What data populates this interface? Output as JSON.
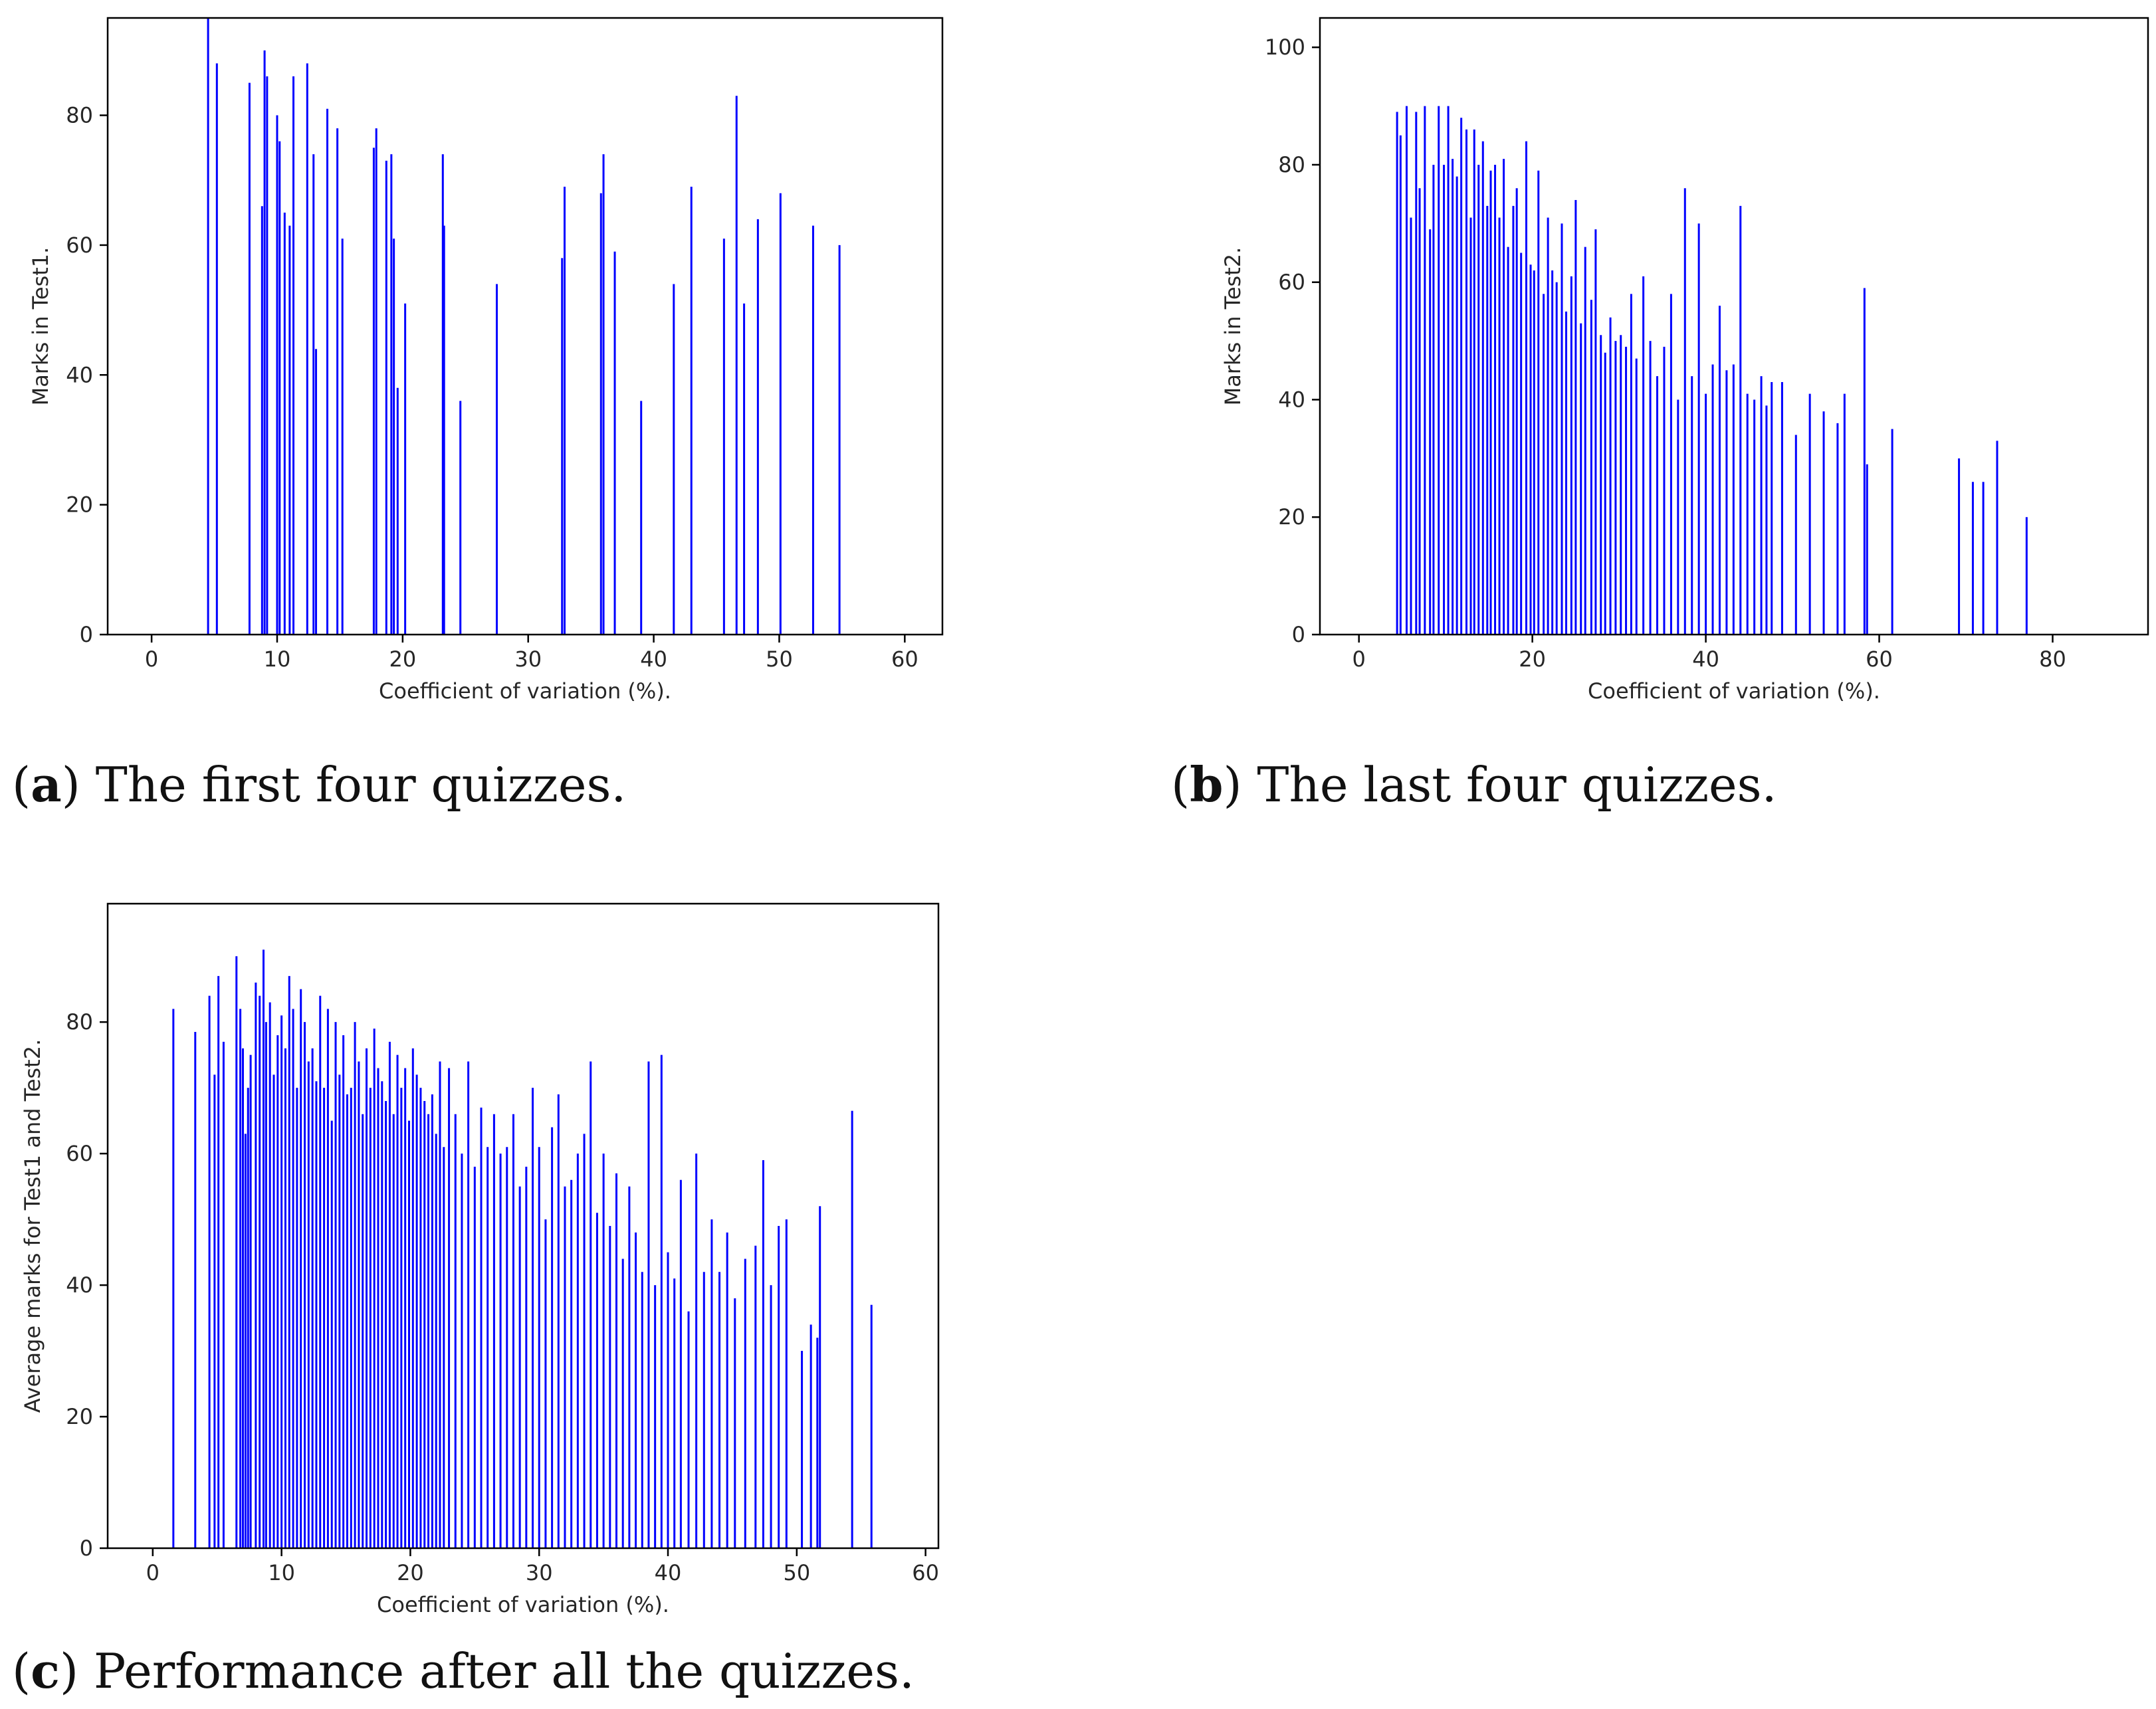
{
  "charts": {
    "a": {
      "chart_data": {
        "type": "bar",
        "title": "",
        "xlabel": "Coefficient of variation (%).",
        "ylabel": "Marks in Test1.",
        "xlim": [
          -3.5,
          63
        ],
        "ylim": [
          0,
          95
        ],
        "xticks": [
          0,
          10,
          20,
          30,
          40,
          50,
          60
        ],
        "yticks": [
          0,
          20,
          40,
          60,
          80
        ],
        "bar_color": "#0000ff",
        "x": [
          4.5,
          5.2,
          7.8,
          8.8,
          9.0,
          9.2,
          10.0,
          10.2,
          10.6,
          11.0,
          11.3,
          12.4,
          12.9,
          13.1,
          14.0,
          14.8,
          15.2,
          17.7,
          17.9,
          18.7,
          19.1,
          19.3,
          19.6,
          20.2,
          23.2,
          23.3,
          24.6,
          27.5,
          32.7,
          32.9,
          35.8,
          36.0,
          36.9,
          39.0,
          41.6,
          43.0,
          45.6,
          46.6,
          47.2,
          48.3,
          50.1,
          52.7,
          54.8
        ],
        "values": [
          95,
          88,
          85,
          66,
          90,
          86,
          80,
          76,
          65,
          63,
          86,
          88,
          74,
          44,
          81,
          78,
          61,
          75,
          78,
          73,
          74,
          61,
          38,
          51,
          74,
          63,
          36,
          54,
          58,
          69,
          68,
          74,
          59,
          36,
          54,
          69,
          61,
          83,
          51,
          64,
          68,
          63,
          60
        ]
      },
      "caption": {
        "label": "a",
        "text": " The first four quizzes."
      }
    },
    "b": {
      "chart_data": {
        "type": "bar",
        "title": "",
        "xlabel": "Coefficient of variation (%).",
        "ylabel": "Marks in Test2.",
        "xlim": [
          -4.5,
          91
        ],
        "ylim": [
          0,
          105
        ],
        "xticks": [
          0,
          20,
          40,
          60,
          80
        ],
        "yticks": [
          0,
          20,
          40,
          60,
          80,
          100
        ],
        "bar_color": "#0000ff",
        "x": [
          4.4,
          4.8,
          5.5,
          6.0,
          6.6,
          7.0,
          7.6,
          8.2,
          8.6,
          9.2,
          9.8,
          10.3,
          10.8,
          11.3,
          11.8,
          12.4,
          12.9,
          13.3,
          13.8,
          14.3,
          14.8,
          15.2,
          15.7,
          16.2,
          16.7,
          17.2,
          17.8,
          18.2,
          18.7,
          19.3,
          19.8,
          20.2,
          20.7,
          21.3,
          21.8,
          22.3,
          22.8,
          23.4,
          23.9,
          24.5,
          25.0,
          25.6,
          26.1,
          26.8,
          27.3,
          27.9,
          28.4,
          29.0,
          29.6,
          30.2,
          30.8,
          31.4,
          32.0,
          32.8,
          33.6,
          34.4,
          35.2,
          36.0,
          36.8,
          37.6,
          38.4,
          39.2,
          40.0,
          40.8,
          41.6,
          42.4,
          43.2,
          44.0,
          44.8,
          45.6,
          46.4,
          47.0,
          47.6,
          48.8,
          50.4,
          52.0,
          53.6,
          55.2,
          56.0,
          58.3,
          58.6,
          61.5,
          69.2,
          70.8,
          72.0,
          73.6,
          77.0
        ],
        "values": [
          89,
          85,
          90,
          71,
          89,
          76,
          90,
          69,
          80,
          90,
          80,
          90,
          81,
          78,
          88,
          86,
          71,
          86,
          80,
          84,
          73,
          79,
          80,
          71,
          81,
          66,
          73,
          76,
          65,
          84,
          63,
          62,
          79,
          58,
          71,
          62,
          60,
          70,
          55,
          61,
          74,
          53,
          66,
          57,
          69,
          51,
          48,
          54,
          50,
          51,
          49,
          58,
          47,
          61,
          50,
          44,
          49,
          58,
          40,
          76,
          44,
          70,
          41,
          46,
          56,
          45,
          46,
          73,
          41,
          40,
          44,
          39,
          43,
          43,
          34,
          41,
          38,
          36,
          41,
          59,
          29,
          35,
          30,
          26,
          26,
          33,
          20
        ]
      },
      "caption": {
        "label": "b",
        "text": " The last four quizzes."
      }
    },
    "c": {
      "chart_data": {
        "type": "bar",
        "title": "",
        "xlabel": "Coefficient of variation (%).",
        "ylabel": "Average marks for Test1 and Test2.",
        "xlim": [
          -3.5,
          61
        ],
        "ylim": [
          0,
          98
        ],
        "xticks": [
          0,
          10,
          20,
          30,
          40,
          50,
          60
        ],
        "yticks": [
          0,
          20,
          40,
          60,
          80
        ],
        "bar_color": "#0000ff",
        "x": [
          1.6,
          3.3,
          4.4,
          4.8,
          5.1,
          5.5,
          6.5,
          6.8,
          7.0,
          7.2,
          7.4,
          7.6,
          8.0,
          8.3,
          8.6,
          8.8,
          9.1,
          9.4,
          9.7,
          10.0,
          10.3,
          10.6,
          10.9,
          11.2,
          11.5,
          11.8,
          12.1,
          12.4,
          12.7,
          13.0,
          13.3,
          13.6,
          13.9,
          14.2,
          14.5,
          14.8,
          15.1,
          15.4,
          15.7,
          16.0,
          16.3,
          16.6,
          16.9,
          17.2,
          17.5,
          17.8,
          18.1,
          18.4,
          18.7,
          19.0,
          19.3,
          19.6,
          19.9,
          20.2,
          20.5,
          20.8,
          21.1,
          21.4,
          21.7,
          22.0,
          22.3,
          22.6,
          23.0,
          23.5,
          24.0,
          24.5,
          25.0,
          25.5,
          26.0,
          26.5,
          27.0,
          27.5,
          28.0,
          28.5,
          29.0,
          29.5,
          30.0,
          30.5,
          31.0,
          31.5,
          32.0,
          32.5,
          33.0,
          33.5,
          34.0,
          34.5,
          35.0,
          35.5,
          36.0,
          36.5,
          37.0,
          37.5,
          38.0,
          38.5,
          39.0,
          39.5,
          40.0,
          40.5,
          41.0,
          41.6,
          42.2,
          42.8,
          43.4,
          44.0,
          44.6,
          45.2,
          46.0,
          46.8,
          47.4,
          48.0,
          48.6,
          49.2,
          50.4,
          51.1,
          51.6,
          51.8,
          54.3,
          55.8
        ],
        "values": [
          82,
          78.5,
          84,
          72,
          87,
          77,
          90,
          82,
          76,
          63,
          70,
          75,
          86,
          84,
          91,
          80,
          83,
          72,
          78,
          81,
          76,
          87,
          82,
          70,
          85,
          80,
          74,
          76,
          71,
          84,
          70,
          82,
          65,
          80,
          72,
          78,
          69,
          70,
          80,
          74,
          66,
          76,
          70,
          79,
          73,
          71,
          68,
          77,
          66,
          75,
          70,
          73,
          65,
          76,
          72,
          70,
          68,
          66,
          69,
          63,
          74,
          61,
          73,
          66,
          60,
          74,
          58,
          67,
          61,
          66,
          60,
          61,
          66,
          55,
          58,
          70,
          61,
          50,
          64,
          69,
          55,
          56,
          60,
          63,
          74,
          51,
          60,
          49,
          57,
          44,
          55,
          48,
          42,
          74,
          40,
          75,
          45,
          41,
          56,
          36,
          60,
          42,
          50,
          42,
          48,
          38,
          44,
          46,
          59,
          40,
          49,
          50,
          30,
          34,
          32,
          52,
          66.5,
          37
        ]
      },
      "caption": {
        "label": "c",
        "text": " Performance after all the quizzes."
      }
    }
  }
}
